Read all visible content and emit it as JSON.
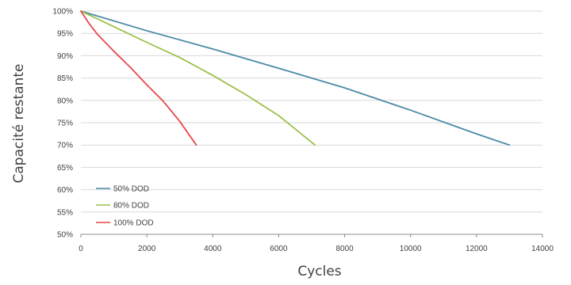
{
  "chart_data": {
    "type": "line",
    "title": "",
    "xlabel": "Cycles",
    "ylabel": "Capacité restante",
    "xlim": [
      0,
      14000
    ],
    "ylim": [
      50,
      100
    ],
    "x_ticks": [
      "0",
      "2000",
      "4000",
      "6000",
      "8000",
      "10000",
      "12000",
      "14000"
    ],
    "y_ticks": [
      "50%",
      "55%",
      "60%",
      "65%",
      "70%",
      "75%",
      "80%",
      "85%",
      "90%",
      "95%",
      "100%"
    ],
    "grid": "horizontal",
    "legend_position": "bottom-left",
    "series": [
      {
        "name": "50% DOD",
        "color": "#4a8aa8",
        "points": [
          [
            0,
            100
          ],
          [
            2000,
            95.6
          ],
          [
            4000,
            91.5
          ],
          [
            6000,
            87.2
          ],
          [
            8000,
            82.8
          ],
          [
            10000,
            77.8
          ],
          [
            12000,
            72.5
          ],
          [
            13000,
            70
          ]
        ]
      },
      {
        "name": "80% DOD",
        "color": "#9cc04a",
        "points": [
          [
            0,
            100
          ],
          [
            1000,
            96.5
          ],
          [
            2000,
            93.0
          ],
          [
            3000,
            89.6
          ],
          [
            4000,
            85.6
          ],
          [
            5000,
            81.3
          ],
          [
            6000,
            76.6
          ],
          [
            7100,
            70
          ]
        ]
      },
      {
        "name": "100% DOD",
        "color": "#e8474c",
        "points": [
          [
            0,
            100
          ],
          [
            250,
            97.2
          ],
          [
            500,
            94.8
          ],
          [
            1000,
            91.0
          ],
          [
            1500,
            87.4
          ],
          [
            2000,
            83.5
          ],
          [
            2500,
            79.8
          ],
          [
            3000,
            75.3
          ],
          [
            3500,
            70
          ]
        ]
      }
    ]
  }
}
